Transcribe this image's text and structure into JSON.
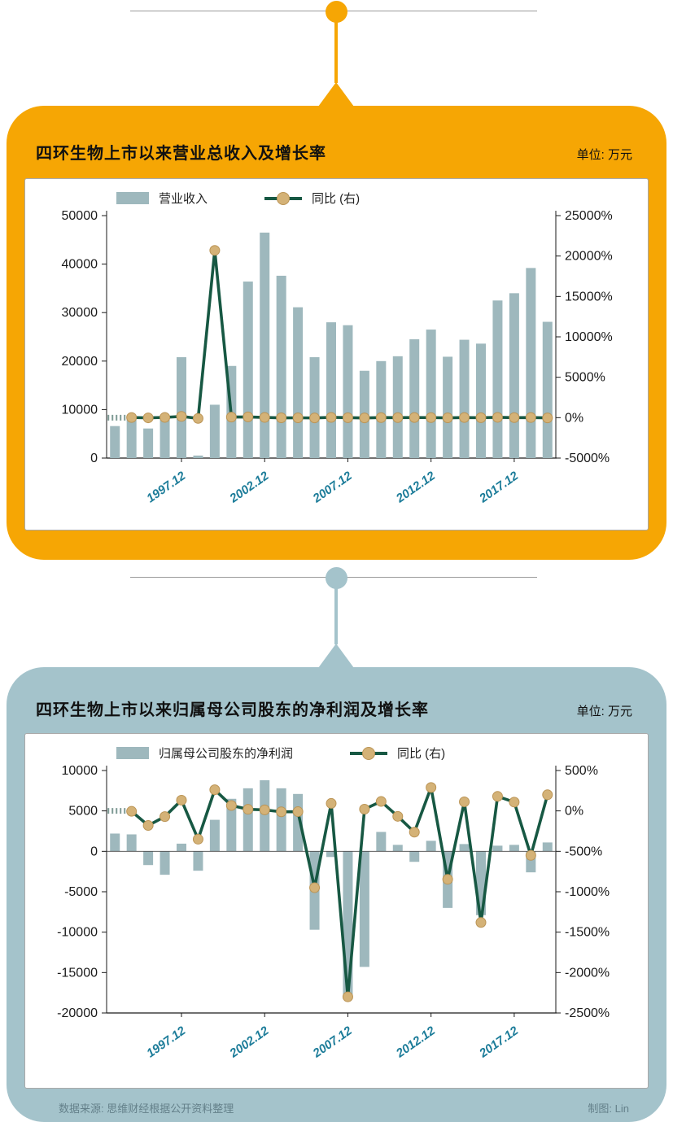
{
  "colors": {
    "orange": "#F6A604",
    "teal": "#A4C3CB",
    "bar": "#9EB8BD",
    "line": "#175843",
    "line_stub": "#7E9A94",
    "dot_fill": "#D4B277",
    "dot_stroke": "#BB9455",
    "x_label": "#1C7C99",
    "axis_text": "#1A1A1A",
    "connector_gray": "#9B9B9B",
    "footer_text": "#64808A"
  },
  "footer": {
    "source": "数据来源: 思维财经根据公开资料整理",
    "credit": "制图: Lin"
  },
  "chart_data": [
    {
      "type": "bar+line",
      "title": "四环生物上市以来营业总收入及增长率",
      "unit": "单位: 万元",
      "legend_bar_label": "营业收入",
      "legend_line_label": "同比 (右)",
      "categories": [
        "1993.12",
        "1994.12",
        "1995.12",
        "1996.12",
        "1997.12",
        "1998.12",
        "1999.12",
        "2000.12",
        "2001.12",
        "2002.12",
        "2003.12",
        "2004.12",
        "2005.12",
        "2006.12",
        "2007.12",
        "2008.12",
        "2009.12",
        "2010.12",
        "2011.12",
        "2012.12",
        "2013.12",
        "2014.12",
        "2015.12",
        "2016.12",
        "2017.12",
        "2018.12",
        "2019.12"
      ],
      "bar_series": {
        "name": "营业收入",
        "axis": "left",
        "values": [
          6600,
          8000,
          6100,
          8100,
          20800,
          520,
          11000,
          19000,
          36400,
          46500,
          37600,
          31100,
          20800,
          28000,
          27400,
          18000,
          20000,
          21000,
          24500,
          26500,
          20900,
          24400,
          23600,
          32500,
          34000,
          39200,
          28100
        ]
      },
      "line_series": {
        "name": "同比 (右)",
        "axis": "right",
        "values": [
          null,
          21,
          -24,
          33,
          157,
          -97,
          20700,
          73,
          92,
          28,
          -19,
          -17,
          -33,
          35,
          -2,
          -34,
          11,
          5,
          17,
          8,
          -21,
          17,
          -4,
          38,
          5,
          15,
          -28
        ]
      },
      "left_axis": {
        "min": 0,
        "max": 50000,
        "tick_values": [
          50000,
          40000,
          30000,
          20000,
          10000,
          0
        ],
        "tick_labels": [
          "50000",
          "40000",
          "30000",
          "20000",
          "10000",
          "0"
        ]
      },
      "right_axis": {
        "min": -5000,
        "max": 25000,
        "tick_values": [
          25000,
          20000,
          15000,
          10000,
          5000,
          0,
          -5000
        ],
        "tick_labels": [
          "25000%",
          "20000%",
          "15000%",
          "10000%",
          "5000%",
          "0%",
          "-5000%"
        ]
      },
      "x_ticks": {
        "indices": [
          4,
          9,
          14,
          19,
          24
        ],
        "labels": [
          "1997.12",
          "2002.12",
          "2007.12",
          "2012.12",
          "2017.12"
        ]
      },
      "zero_line": false,
      "grid": false,
      "legend_position": "top"
    },
    {
      "type": "bar+line",
      "title": "四环生物上市以来归属母公司股东的净利润及增长率",
      "unit": "单位: 万元",
      "legend_bar_label": "归属母公司股东的净利润",
      "legend_line_label": "同比 (右)",
      "categories": [
        "1993.12",
        "1994.12",
        "1995.12",
        "1996.12",
        "1997.12",
        "1998.12",
        "1999.12",
        "2000.12",
        "2001.12",
        "2002.12",
        "2003.12",
        "2004.12",
        "2005.12",
        "2006.12",
        "2007.12",
        "2008.12",
        "2009.12",
        "2010.12",
        "2011.12",
        "2012.12",
        "2013.12",
        "2014.12",
        "2015.12",
        "2016.12",
        "2017.12",
        "2018.12",
        "2019.12"
      ],
      "bar_series": {
        "name": "归属母公司股东的净利润",
        "axis": "left",
        "values": [
          2200,
          2100,
          -1700,
          -2900,
          950,
          -2400,
          3900,
          6500,
          7800,
          8800,
          7800,
          7100,
          -9700,
          -700,
          -18300,
          -14300,
          2400,
          800,
          -1300,
          1300,
          -7000,
          900,
          -7900,
          700,
          800,
          -2600,
          1100
        ]
      },
      "line_series": {
        "name": "同比 (右)",
        "axis": "right",
        "values": [
          null,
          -5,
          -180,
          -70,
          133,
          -350,
          262,
          67,
          20,
          13,
          -11,
          -9,
          -950,
          93,
          -2300,
          22,
          117,
          -67,
          -263,
          290,
          -846,
          113,
          -1380,
          180,
          109,
          -550,
          200
        ]
      },
      "left_axis": {
        "min": -20000,
        "max": 10000,
        "tick_values": [
          10000,
          5000,
          0,
          -5000,
          -10000,
          -15000,
          -20000
        ],
        "tick_labels": [
          "10000",
          "5000",
          "0",
          "-5000",
          "-10000",
          "-15000",
          "-20000"
        ]
      },
      "right_axis": {
        "min": -2500,
        "max": 500,
        "tick_values": [
          500,
          0,
          -500,
          -1000,
          -1500,
          -2000,
          -2500
        ],
        "tick_labels": [
          "500%",
          "0%",
          "-500%",
          "-1000%",
          "-1500%",
          "-2000%",
          "-2500%"
        ]
      },
      "x_ticks": {
        "indices": [
          4,
          9,
          14,
          19,
          24
        ],
        "labels": [
          "1997.12",
          "2002.12",
          "2007.12",
          "2012.12",
          "2017.12"
        ]
      },
      "zero_line": true,
      "grid": false,
      "legend_position": "top"
    }
  ]
}
